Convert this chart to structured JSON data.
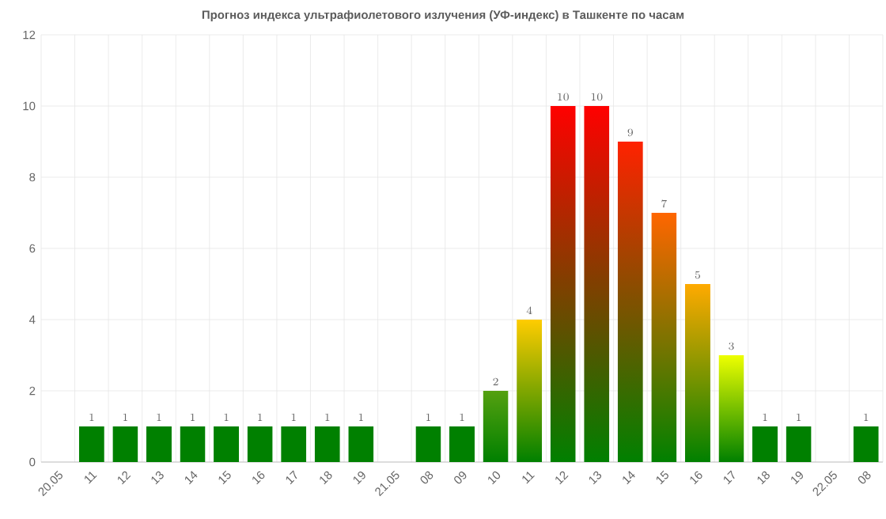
{
  "chart_data": {
    "type": "bar",
    "title": "Прогноз индекса ультрафиолетового излучения (УФ-индекс) в Ташкенте по часам",
    "categories": [
      "20.05",
      "11",
      "12",
      "13",
      "14",
      "15",
      "16",
      "17",
      "18",
      "19",
      "21.05",
      "08",
      "09",
      "10",
      "11",
      "12",
      "13",
      "14",
      "15",
      "16",
      "17",
      "18",
      "19",
      "22.05",
      "08"
    ],
    "values": [
      null,
      1,
      1,
      1,
      1,
      1,
      1,
      1,
      1,
      1,
      null,
      1,
      1,
      2,
      4,
      10,
      10,
      9,
      7,
      5,
      3,
      1,
      1,
      null,
      1
    ],
    "color": "#008000",
    "colors": [
      "#008000",
      "#008000",
      "#008000",
      "#008000",
      "#008000",
      "#008000",
      "#008000",
      "#008000",
      "#008000",
      "#008000",
      "#008000",
      "#008000",
      "#008000",
      "#55a010",
      "#ffcc00",
      "#ff0000",
      "#ff0000",
      "#ff2200",
      "#ff6600",
      "#ffaa00",
      "#eeff00",
      "#008000",
      "#008000",
      "#008000",
      "#008000"
    ],
    "ylim": [
      0,
      12
    ],
    "yticks": [
      0,
      2,
      4,
      6,
      8,
      10,
      12
    ],
    "grid": true,
    "data_labels": true
  }
}
